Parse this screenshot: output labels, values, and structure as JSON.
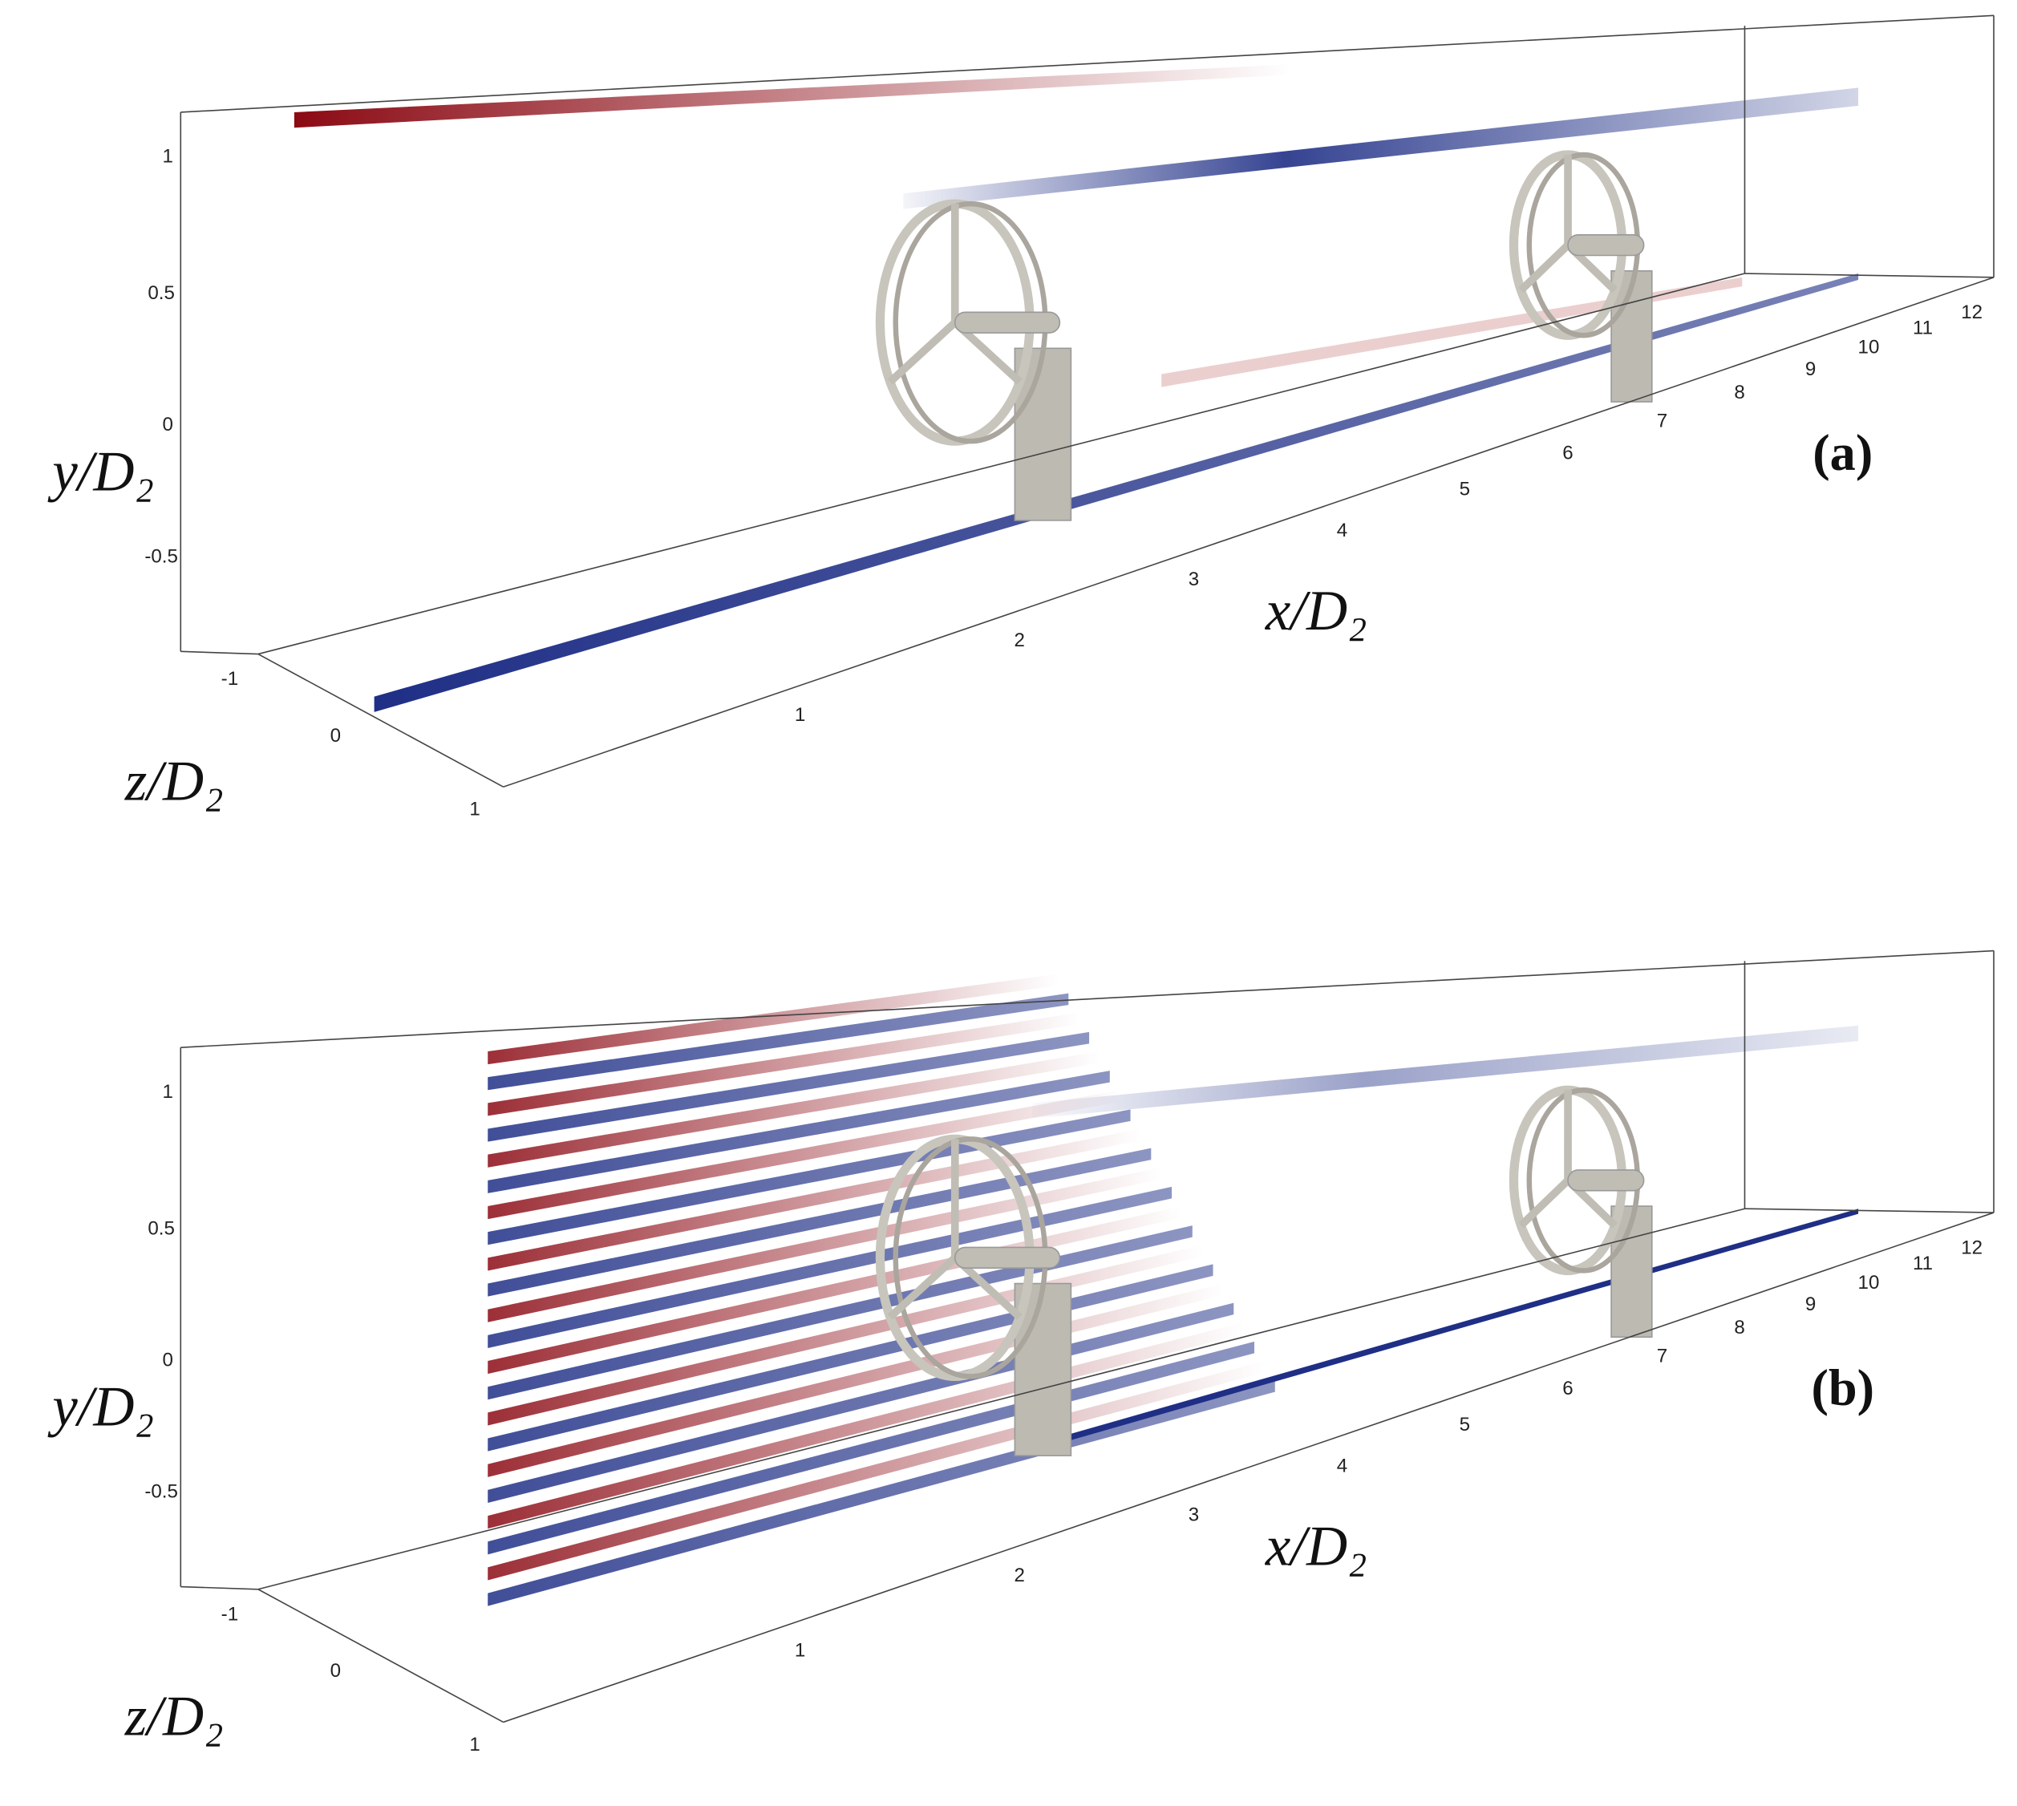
{
  "panels": [
    {
      "label": "(a)",
      "x_axis": {
        "label": "x/D₂",
        "ticks": [
          1,
          2,
          3,
          4,
          5,
          6,
          7,
          8,
          9,
          10,
          11,
          12
        ]
      },
      "y_axis": {
        "label": "y/D₂",
        "ticks": [
          1,
          0.5,
          0,
          -0.5
        ]
      },
      "z_axis": {
        "label": "z/D₂",
        "ticks": [
          -1,
          0,
          1
        ]
      }
    },
    {
      "label": "(b)",
      "x_axis": {
        "label": "x/D₂",
        "ticks": [
          1,
          2,
          3,
          4,
          5,
          6,
          7,
          8,
          9,
          10,
          11,
          12
        ]
      },
      "y_axis": {
        "label": "y/D₂",
        "ticks": [
          1,
          0.5,
          0,
          -0.5
        ]
      },
      "z_axis": {
        "label": "z/D₂",
        "ticks": [
          -1,
          0,
          1
        ]
      }
    }
  ]
}
